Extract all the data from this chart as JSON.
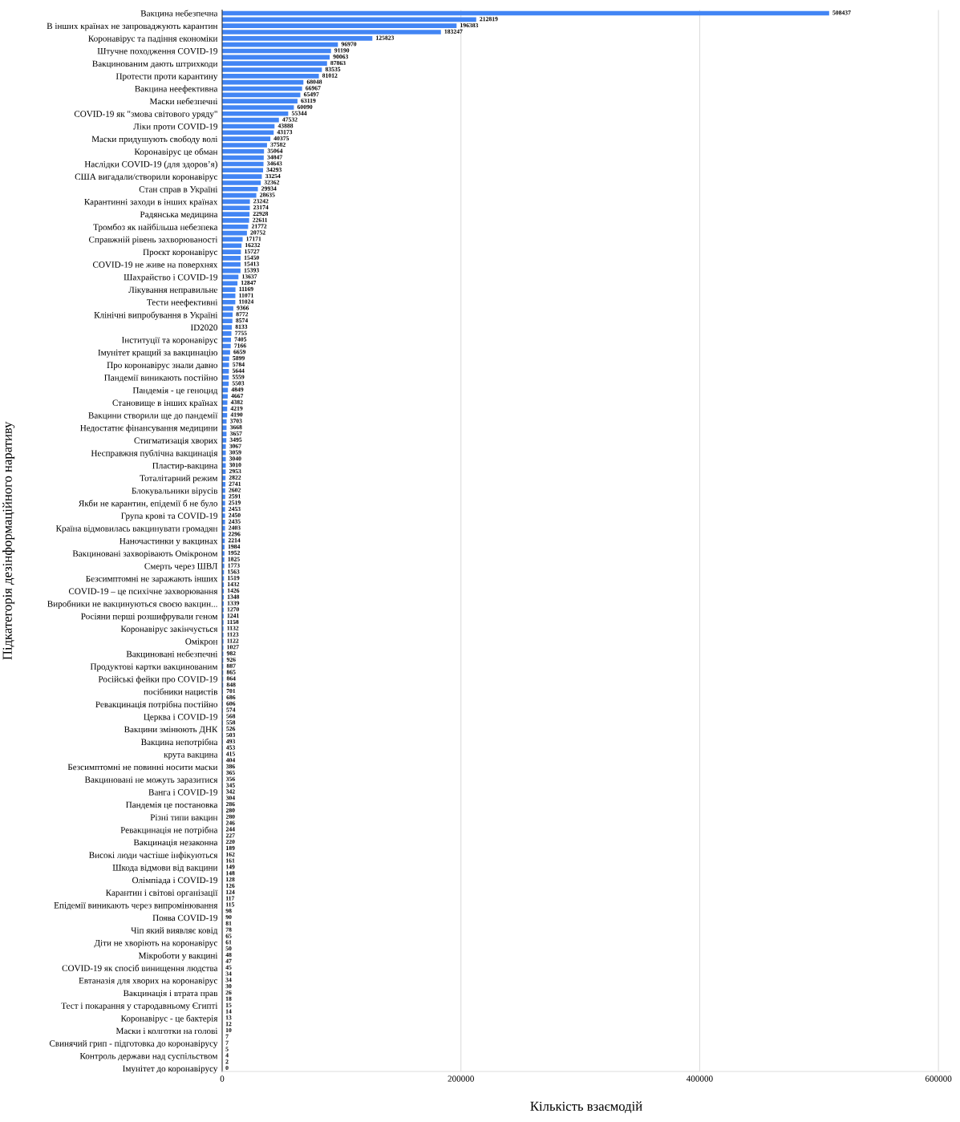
{
  "chart_data": {
    "type": "bar",
    "orientation": "horizontal",
    "xlabel": "Кількість взаємодій",
    "ylabel": "Підкатегорія дезінформаційного наративу",
    "categories": [
      "Вакцина небезпечна",
      null,
      "В інших країнах не запроваджують карантин",
      null,
      "Коронавірус та падіння економіки",
      null,
      "Штучне походження COVID-19",
      null,
      "Вакцинованим дають штрихкоди",
      null,
      "Протести проти карантину",
      null,
      "Вакцина неефективна",
      null,
      "Маски небезпечні",
      null,
      "COVID-19 як \"змова світового уряду\"",
      null,
      "Ліки проти COVID-19",
      null,
      "Маски придушують свободу волі",
      null,
      "Коронавірус це обман",
      null,
      "Наслідки COVID-19 (для здоров’я)",
      null,
      "США вигадали/створили коронавірус",
      null,
      "Стан справ в Україні",
      null,
      "Карантинні заходи в інших країнах",
      null,
      "Радянська медицина",
      null,
      "Тромбоз як найбільша небезпека",
      null,
      "Справжній рівень захворюваності",
      null,
      "Проєкт коронавірус",
      null,
      "COVID-19 не живе на поверхнях",
      null,
      "Шахрайство і COVID-19",
      null,
      "Лікування неправильне",
      null,
      "Тести неефективні",
      null,
      "Клінічні випробування в Україні",
      null,
      "ID2020",
      null,
      "Інституції та коронавірус",
      null,
      "Імунітет кращий за вакцинацію",
      null,
      "Про коронавірус знали давно",
      null,
      "Пандемії виникають постійно",
      null,
      "Пандемія - це геноцид",
      null,
      "Становище в інших країнах",
      null,
      "Вакцини створили ще до пандемії",
      null,
      "Недостатнє фінансування медицини",
      null,
      "Стигматизація хворих",
      null,
      "Несправжня публічна вакцинація",
      null,
      "Пластир-вакцина",
      null,
      "Тоталітарний режим",
      null,
      "Блокувальники вірусів",
      null,
      "Якби не карантин, епідемії б не було",
      null,
      "Група крові та COVID-19",
      null,
      "Країна відмовилась вакцинувати громадян",
      null,
      "Наночастинки у вакцинах",
      null,
      "Вакциновані захворівають Омікроном",
      null,
      "Смерть через ШВЛ",
      null,
      "Безсимптомні не заражають інших",
      null,
      "COVID-19 – це психічне захворювання",
      null,
      "Виробники не вакцинуються своєю вакцин...",
      null,
      "Росіяни перші розшифрували геном",
      null,
      "Коронавірус закінчується",
      null,
      "Омікрон",
      null,
      "Вакциновані небезпечні",
      null,
      "Продуктові картки вакцинованим",
      null,
      "Російські фейки про COVID-19",
      null,
      "посібники нацистів",
      null,
      "Ревакцинація потрібна постійно",
      null,
      "Церква і COVID-19",
      null,
      "Вакцини змінюють ДНК",
      null,
      "Вакцина непотрібна",
      null,
      "крута вакцина",
      null,
      "Безсимптомні не повинні носити маски",
      null,
      "Вакциновані не можуть заразитися",
      null,
      "Ванга і COVID-19",
      null,
      "Пандемія це постановка",
      null,
      "Різні типи вакцин",
      null,
      "Ревакцинація не потрібна",
      null,
      "Вакцинація незаконна",
      null,
      "Високі люди частіше інфікуються",
      null,
      "Шкода відмови від вакцини",
      null,
      "Олімпіада і COVID-19",
      null,
      "Карантин і світові організації",
      null,
      "Епідемії виникають через випромінювання",
      null,
      "Поява COVID-19",
      null,
      "Чіп який виявляє ковід",
      null,
      "Діти не хворіють на коронавірус",
      null,
      "Мікроботи у вакцині",
      null,
      "COVID-19 як спосіб винищення людства",
      null,
      "Евтаназія для хворих на коронавірус",
      null,
      "Вакцинація і втрата прав",
      null,
      "Тест і покарання у стародавньому Єгипті",
      null,
      "Коронавірус - це бактерія",
      null,
      "Маски і колготки на голові",
      null,
      "Свинячий грип - підготовка до коронавірусу",
      null,
      "Контроль держави над суспільством",
      null,
      "Імунітет до коронавірусу"
    ],
    "values": [
      508437,
      212819,
      196383,
      183247,
      125823,
      96970,
      91190,
      90063,
      87863,
      83535,
      81012,
      68048,
      66967,
      65497,
      63119,
      60090,
      55344,
      47532,
      43888,
      43173,
      40375,
      37582,
      35064,
      34847,
      34643,
      34293,
      33254,
      32362,
      29934,
      28635,
      23242,
      23174,
      22928,
      22611,
      21772,
      20752,
      17171,
      16232,
      15727,
      15450,
      15413,
      15393,
      13637,
      12847,
      11169,
      11071,
      11024,
      9366,
      8772,
      8574,
      8133,
      7755,
      7405,
      7166,
      6659,
      5899,
      5784,
      5644,
      5559,
      5503,
      4849,
      4667,
      4382,
      4219,
      4190,
      3703,
      3668,
      3657,
      3495,
      3067,
      3059,
      3040,
      3010,
      2953,
      2822,
      2741,
      2602,
      2591,
      2519,
      2453,
      2450,
      2435,
      2403,
      2296,
      2214,
      1984,
      1952,
      1825,
      1773,
      1563,
      1519,
      1432,
      1426,
      1348,
      1339,
      1270,
      1241,
      1158,
      1132,
      1123,
      1122,
      1027,
      982,
      926,
      887,
      865,
      864,
      848,
      701,
      686,
      606,
      574,
      568,
      558,
      526,
      503,
      493,
      453,
      415,
      404,
      386,
      365,
      356,
      345,
      342,
      304,
      286,
      280,
      280,
      246,
      244,
      227,
      220,
      189,
      162,
      161,
      149,
      148,
      128,
      126,
      124,
      117,
      115,
      98,
      90,
      81,
      78,
      65,
      61,
      50,
      48,
      47,
      45,
      34,
      34,
      30,
      26,
      18,
      15,
      14,
      13,
      12,
      10,
      7,
      7,
      5,
      4,
      2,
      0
    ],
    "color": "#4285f4",
    "xlim": [
      0,
      610000
    ],
    "xticks": [
      0,
      200000,
      400000,
      600000
    ],
    "grid": "x",
    "data_labels": true
  }
}
